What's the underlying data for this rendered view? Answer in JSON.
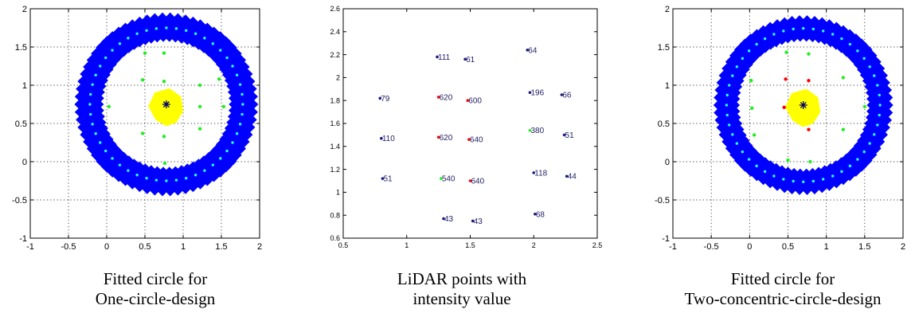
{
  "captions": {
    "left": [
      "Fitted circle for",
      "One-circle-design"
    ],
    "middle": [
      "LiDAR points with",
      "intensity value"
    ],
    "right": [
      "Fitted circle for",
      "Two-concentric-circle-design"
    ]
  },
  "colors": {
    "ring": "#0000ff",
    "ring_points": "#22ffff",
    "green_points": "#22ee22",
    "red_points": "#ff0000",
    "blob": "#ffff00",
    "center": "#000066",
    "label_dot": "#1a1a80"
  },
  "chart_data": [
    {
      "type": "scatter",
      "xlim": [
        -1,
        2
      ],
      "ylim": [
        -1,
        2
      ],
      "xticks": [
        "-1",
        "-0.5",
        "0",
        "0.5",
        "1",
        "1.5",
        "2"
      ],
      "yticks": [
        "-1",
        "-0.5",
        "0",
        "0.5",
        "1",
        "1.5",
        "2"
      ],
      "grid": true,
      "ring": {
        "center": [
          0.78,
          0.75
        ],
        "radius_inner": 0.87,
        "radius_outer": 1.15,
        "radius_points": 1.0
      },
      "blob_center": [
        0.78,
        0.75
      ],
      "center_marker": [
        0.78,
        0.75
      ],
      "green_points": [
        [
          0.5,
          1.42
        ],
        [
          0.75,
          1.42
        ],
        [
          0.47,
          1.07
        ],
        [
          0.75,
          1.05
        ],
        [
          1.22,
          1.0
        ],
        [
          1.47,
          1.08
        ],
        [
          0.03,
          0.72
        ],
        [
          1.53,
          0.72
        ],
        [
          1.22,
          0.72
        ],
        [
          0.47,
          0.37
        ],
        [
          0.75,
          0.33
        ],
        [
          1.22,
          0.43
        ],
        [
          0.76,
          -0.02
        ]
      ],
      "red_points": []
    },
    {
      "type": "scatter",
      "xlim": [
        0.5,
        2.5
      ],
      "ylim": [
        0.6,
        2.6
      ],
      "xticks": [
        "0.5",
        "1",
        "1.5",
        "2",
        "2.5"
      ],
      "yticks": [
        "0.6",
        "0.8",
        "1",
        "1.2",
        "1.4",
        "1.6",
        "1.8",
        "2",
        "2.2",
        "2.4",
        "2.6"
      ],
      "grid": false,
      "points": [
        {
          "x": 1.24,
          "y": 2.18,
          "label": "111",
          "color": "blue"
        },
        {
          "x": 1.46,
          "y": 2.16,
          "label": "61",
          "color": "blue"
        },
        {
          "x": 1.95,
          "y": 2.24,
          "label": "64",
          "color": "blue"
        },
        {
          "x": 0.79,
          "y": 1.82,
          "label": "79",
          "color": "blue"
        },
        {
          "x": 1.25,
          "y": 1.83,
          "label": "620",
          "color": "red"
        },
        {
          "x": 1.48,
          "y": 1.8,
          "label": "600",
          "color": "red"
        },
        {
          "x": 1.97,
          "y": 1.87,
          "label": "196",
          "color": "blue"
        },
        {
          "x": 2.22,
          "y": 1.85,
          "label": "66",
          "color": "blue"
        },
        {
          "x": 0.8,
          "y": 1.47,
          "label": "110",
          "color": "blue"
        },
        {
          "x": 1.25,
          "y": 1.48,
          "label": "620",
          "color": "red"
        },
        {
          "x": 1.49,
          "y": 1.46,
          "label": "640",
          "color": "red"
        },
        {
          "x": 1.97,
          "y": 1.54,
          "label": "380",
          "color": "green"
        },
        {
          "x": 2.24,
          "y": 1.5,
          "label": "51",
          "color": "blue"
        },
        {
          "x": 0.81,
          "y": 1.12,
          "label": "51",
          "color": "blue"
        },
        {
          "x": 1.27,
          "y": 1.12,
          "label": "540",
          "color": "green"
        },
        {
          "x": 1.5,
          "y": 1.1,
          "label": "640",
          "color": "red"
        },
        {
          "x": 2.0,
          "y": 1.17,
          "label": "118",
          "color": "blue"
        },
        {
          "x": 2.26,
          "y": 1.14,
          "label": "44",
          "color": "blue"
        },
        {
          "x": 1.29,
          "y": 0.77,
          "label": "43",
          "color": "blue"
        },
        {
          "x": 1.52,
          "y": 0.75,
          "label": "43",
          "color": "blue"
        },
        {
          "x": 2.01,
          "y": 0.81,
          "label": "68",
          "color": "blue"
        }
      ]
    },
    {
      "type": "scatter",
      "xlim": [
        -1,
        2
      ],
      "ylim": [
        -1,
        2
      ],
      "xticks": [
        "-1",
        "-0.5",
        "0",
        "0.5",
        "1",
        "1.5",
        "2"
      ],
      "yticks": [
        "-1",
        "-0.5",
        "0",
        "0.5",
        "1",
        "1.5",
        "2"
      ],
      "grid": true,
      "ring": {
        "center": [
          0.7,
          0.74
        ],
        "radius_inner": 0.88,
        "radius_outer": 1.12,
        "radius_points": 1.0
      },
      "blob_center": [
        0.7,
        0.74
      ],
      "center_marker": [
        0.7,
        0.74
      ],
      "green_points": [
        [
          0.48,
          1.43
        ],
        [
          0.77,
          1.41
        ],
        [
          0.02,
          1.06
        ],
        [
          1.22,
          1.1
        ],
        [
          0.03,
          0.7
        ],
        [
          1.5,
          0.72
        ],
        [
          0.06,
          0.35
        ],
        [
          1.22,
          0.42
        ],
        [
          0.5,
          0.02
        ],
        [
          0.79,
          0.0
        ]
      ],
      "red_points": [
        [
          0.47,
          1.08
        ],
        [
          0.77,
          1.06
        ],
        [
          0.45,
          0.71
        ],
        [
          0.77,
          0.42
        ]
      ]
    }
  ]
}
